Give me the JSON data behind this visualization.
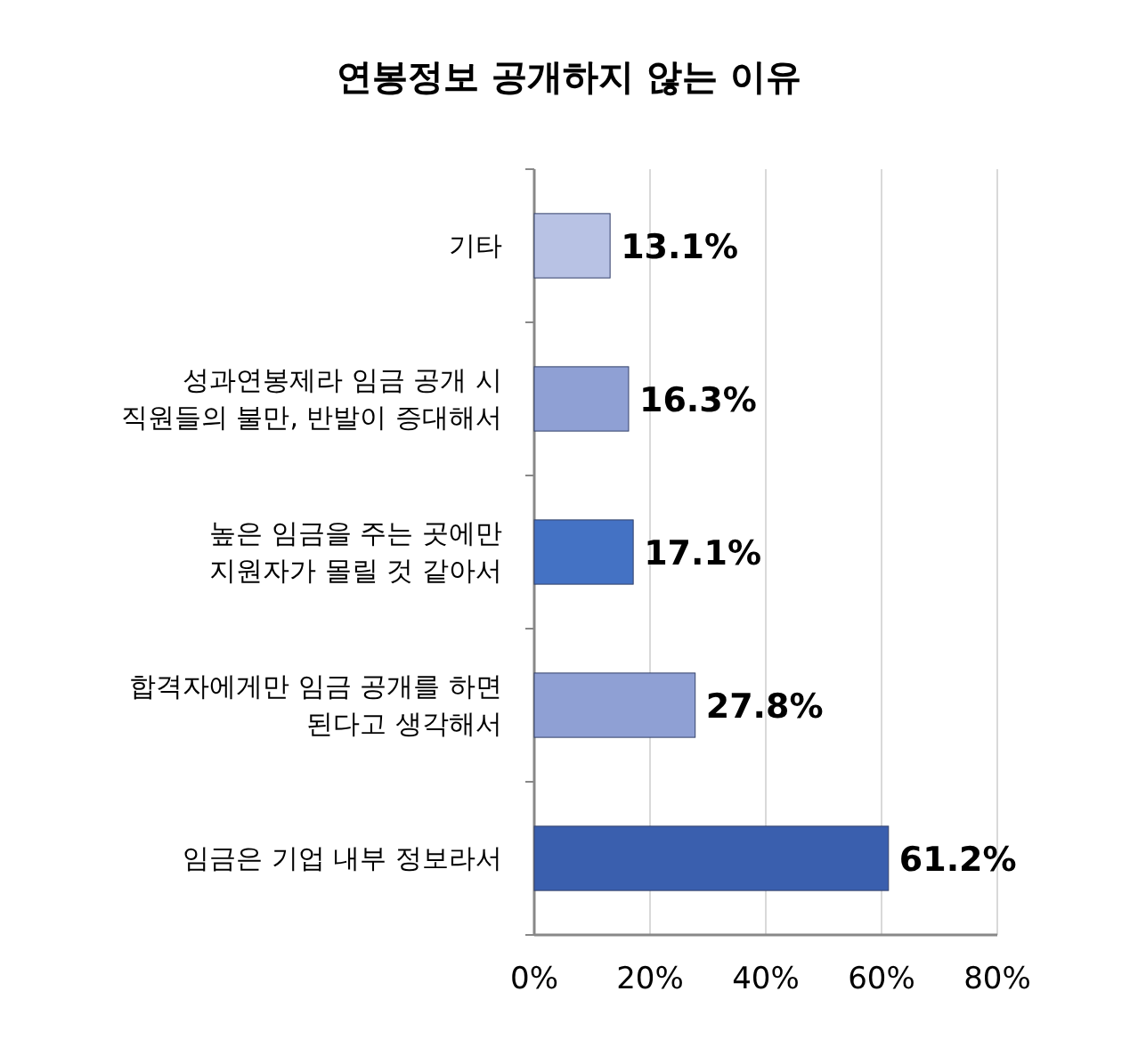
{
  "chart_data": {
    "type": "bar",
    "orientation": "horizontal",
    "title": "연봉정보 공개하지 않는 이유",
    "categories": [
      "기타",
      "성과연봉제라 임금 공개 시\n직원들의 불만, 반발이 증대해서",
      "높은 임금을 주는 곳에만\n지원자가 몰릴 것 같아서",
      "합격자에게만 임금 공개를 하면\n된다고 생각해서",
      "임금은 기업 내부 정보라서"
    ],
    "values": [
      13.1,
      16.3,
      17.1,
      27.8,
      61.2
    ],
    "colors": [
      "#b8c2e4",
      "#8fa0d4",
      "#4472c4",
      "#8fa0d4",
      "#3a5fae"
    ],
    "value_labels": [
      "13.1%",
      "16.3%",
      "17.1%",
      "27.8%",
      "61.2%"
    ],
    "xlim": [
      0,
      80
    ],
    "xticks": [
      {
        "value": 0,
        "label": "0%"
      },
      {
        "value": 20,
        "label": "20%"
      },
      {
        "value": 40,
        "label": "40%"
      },
      {
        "value": 60,
        "label": "60%"
      },
      {
        "value": 80,
        "label": "80%"
      }
    ],
    "grid": "x"
  }
}
